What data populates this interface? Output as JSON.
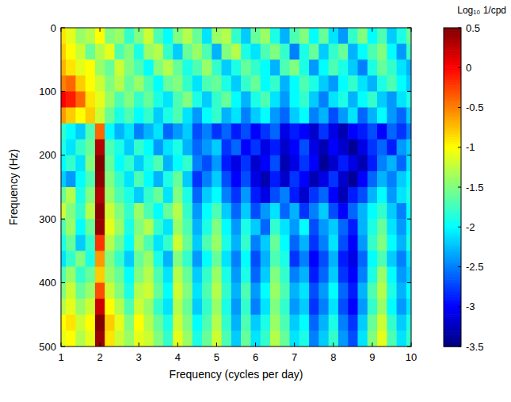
{
  "chart_data": {
    "type": "heatmap",
    "x_label": "Frequency (cycles per day)",
    "y_label": "Frequency (Hz)",
    "xlim": [
      1,
      10
    ],
    "xticks": [
      1,
      2,
      3,
      4,
      5,
      6,
      7,
      8,
      9,
      10
    ],
    "ylim": [
      0,
      500
    ],
    "yticks": [
      0,
      100,
      200,
      300,
      400,
      500
    ],
    "x": [
      1,
      1.25,
      1.5,
      1.75,
      2,
      2.25,
      2.5,
      2.75,
      3,
      3.25,
      3.5,
      3.75,
      4,
      4.25,
      4.5,
      4.75,
      5,
      5.25,
      5.5,
      5.75,
      6,
      6.25,
      6.5,
      6.75,
      7,
      7.25,
      7.5,
      7.75,
      8,
      8.25,
      8.5,
      8.75,
      9,
      9.25,
      9.5,
      9.75,
      10
    ],
    "y": [
      12.5,
      37.5,
      62.5,
      87.5,
      112.5,
      137.5,
      162.5,
      187.5,
      212.5,
      237.5,
      262.5,
      287.5,
      312.5,
      337.5,
      362.5,
      387.5,
      412.5,
      437.5,
      462.5,
      487.5
    ],
    "cells": [
      [
        -0.9,
        -1.1,
        -1.4,
        -1.3,
        -1.0,
        -1.5,
        -1.4,
        -1.8,
        -1.5,
        -1.2,
        -1.7,
        -2.0,
        -1.5,
        -1.3,
        -1.6,
        -2.1,
        -1.4,
        -1.3,
        -1.8,
        -2.2,
        -1.6,
        -1.4,
        -1.9,
        -2.3,
        -1.7,
        -1.5,
        -2.0,
        -1.6,
        -2.1,
        -2.4,
        -1.8,
        -1.5,
        -2.0,
        -1.7,
        -2.2,
        -1.9,
        -1.6
      ],
      [
        -0.8,
        -1.0,
        -1.2,
        -1.6,
        -1.3,
        -1.1,
        -1.7,
        -1.5,
        -1.9,
        -1.4,
        -1.3,
        -1.8,
        -2.2,
        -1.6,
        -1.4,
        -1.7,
        -2.3,
        -1.5,
        -1.3,
        -1.9,
        -2.1,
        -1.7,
        -1.5,
        -1.8,
        -2.5,
        -1.9,
        -1.6,
        -2.2,
        -1.8,
        -1.6,
        -2.3,
        -2.0,
        -1.7,
        -1.5,
        -2.0,
        -2.4,
        -1.8
      ],
      [
        -0.7,
        -0.9,
        -1.1,
        -1.0,
        -1.4,
        -1.6,
        -1.2,
        -1.5,
        -1.7,
        -2.0,
        -1.5,
        -1.3,
        -1.6,
        -1.9,
        -1.7,
        -1.4,
        -1.8,
        -2.2,
        -1.9,
        -1.6,
        -1.8,
        -2.0,
        -2.3,
        -1.7,
        -1.5,
        -1.9,
        -2.4,
        -2.0,
        -1.7,
        -1.9,
        -2.2,
        -2.5,
        -1.9,
        -1.6,
        -1.8,
        -2.1,
        -2.3
      ],
      [
        -0.5,
        -0.4,
        -0.8,
        -1.0,
        -1.2,
        -1.5,
        -1.3,
        -1.6,
        -1.4,
        -1.7,
        -2.0,
        -1.6,
        -1.5,
        -1.8,
        -2.1,
        -1.7,
        -1.6,
        -1.9,
        -2.2,
        -1.8,
        -1.6,
        -2.0,
        -1.8,
        -2.3,
        -2.0,
        -1.7,
        -1.9,
        -2.2,
        -2.4,
        -2.0,
        -1.8,
        -2.1,
        -2.3,
        -1.9,
        -1.7,
        -2.0,
        -2.2
      ],
      [
        0.0,
        -0.1,
        -0.4,
        -0.9,
        -1.1,
        -1.4,
        -1.7,
        -1.5,
        -1.8,
        -1.6,
        -1.9,
        -2.1,
        -1.7,
        -1.5,
        -1.9,
        -2.2,
        -1.8,
        -1.6,
        -2.0,
        -2.3,
        -1.9,
        -1.7,
        -2.1,
        -2.4,
        -2.0,
        -1.8,
        -2.2,
        -2.5,
        -2.1,
        -1.9,
        -2.3,
        -2.0,
        -1.8,
        -2.2,
        -2.4,
        -2.1,
        -1.9
      ],
      [
        -0.6,
        -0.8,
        -1.0,
        -0.8,
        -1.2,
        -1.6,
        -1.9,
        -1.7,
        -2.0,
        -1.8,
        -2.2,
        -1.9,
        -1.7,
        -2.1,
        -2.4,
        -2.0,
        -1.8,
        -2.3,
        -2.1,
        -2.5,
        -2.2,
        -2.0,
        -2.4,
        -2.6,
        -2.2,
        -2.0,
        -2.5,
        -2.3,
        -2.7,
        -2.4,
        -2.1,
        -2.6,
        -2.3,
        -2.0,
        -2.4,
        -2.6,
        -2.2
      ],
      [
        -1.8,
        -2.0,
        -2.2,
        -1.7,
        -0.4,
        -2.0,
        -2.3,
        -2.1,
        -2.5,
        -2.3,
        -2.1,
        -2.6,
        -2.4,
        -2.2,
        -2.7,
        -2.5,
        -2.8,
        -2.6,
        -2.9,
        -2.7,
        -3.0,
        -2.8,
        -2.6,
        -3.1,
        -2.9,
        -3.0,
        -3.2,
        -2.8,
        -3.1,
        -3.3,
        -3.0,
        -2.9,
        -2.7,
        -3.0,
        -2.6,
        -2.8,
        -2.5
      ],
      [
        -1.9,
        -2.1,
        -1.8,
        -1.6,
        0.3,
        -1.7,
        -1.9,
        -2.2,
        -1.8,
        -2.0,
        -2.4,
        -2.1,
        -1.9,
        -2.3,
        -2.6,
        -2.4,
        -2.2,
        -2.8,
        -2.6,
        -3.0,
        -2.8,
        -3.1,
        -2.9,
        -3.2,
        -3.0,
        -2.7,
        -3.1,
        -3.3,
        -3.0,
        -3.2,
        -3.4,
        -3.1,
        -2.8,
        -2.6,
        -2.9,
        -2.4,
        -2.2
      ],
      [
        -2.0,
        -1.8,
        -2.1,
        -1.5,
        0.5,
        -1.6,
        -2.0,
        -1.8,
        -2.2,
        -1.9,
        -1.7,
        -2.3,
        -2.0,
        -1.8,
        -2.5,
        -2.7,
        -2.4,
        -2.9,
        -3.1,
        -2.8,
        -3.2,
        -3.0,
        -2.7,
        -3.3,
        -3.1,
        -2.8,
        -3.0,
        -3.4,
        -3.2,
        -2.9,
        -3.1,
        -3.3,
        -2.9,
        -2.5,
        -2.3,
        -2.6,
        -2.1
      ],
      [
        -2.2,
        -2.4,
        -2.0,
        -1.7,
        0.45,
        -1.5,
        -1.8,
        -2.1,
        -1.7,
        -2.0,
        -2.3,
        -1.9,
        -1.6,
        -2.2,
        -2.8,
        -2.5,
        -2.2,
        -2.7,
        -3.0,
        -2.7,
        -3.1,
        -3.3,
        -2.9,
        -3.2,
        -2.8,
        -3.0,
        -3.3,
        -3.1,
        -2.8,
        -3.2,
        -3.4,
        -3.0,
        -2.6,
        -2.3,
        -2.5,
        -2.2,
        -2.0
      ],
      [
        -1.6,
        -1.3,
        -1.9,
        -1.5,
        0.3,
        -1.4,
        -1.7,
        -1.9,
        -2.2,
        -1.8,
        -1.6,
        -2.1,
        -1.5,
        -1.9,
        -2.6,
        -2.2,
        -2.0,
        -2.5,
        -2.8,
        -2.4,
        -2.9,
        -3.1,
        -2.7,
        -2.5,
        -2.9,
        -3.2,
        -2.8,
        -2.6,
        -3.0,
        -3.3,
        -2.9,
        -2.7,
        -2.3,
        -2.0,
        -2.4,
        -2.1,
        -1.9
      ],
      [
        -1.2,
        -1.5,
        -1.8,
        -1.3,
        0.45,
        -1.2,
        -1.5,
        -1.8,
        -1.4,
        -1.7,
        -2.0,
        -1.6,
        -1.3,
        -1.8,
        -2.4,
        -2.0,
        -1.7,
        -2.2,
        -2.6,
        -2.2,
        -2.7,
        -2.4,
        -2.1,
        -2.6,
        -2.3,
        -2.8,
        -2.5,
        -2.2,
        -2.7,
        -3.0,
        -2.6,
        -2.3,
        -2.0,
        -1.8,
        -2.2,
        -2.5,
        -2.0
      ],
      [
        -1.7,
        -1.4,
        -2.0,
        -1.6,
        0.4,
        -1.1,
        -1.4,
        -1.9,
        -1.5,
        -1.3,
        -1.8,
        -2.1,
        -1.4,
        -1.7,
        -2.3,
        -1.9,
        -1.5,
        -2.0,
        -2.4,
        -1.9,
        -2.2,
        -2.6,
        -1.8,
        -2.1,
        -2.4,
        -2.0,
        -2.7,
        -2.4,
        -2.2,
        -2.6,
        -2.9,
        -2.3,
        -1.9,
        -1.6,
        -2.1,
        -2.4,
        -2.0
      ],
      [
        -1.9,
        -1.6,
        -2.2,
        -1.8,
        -0.2,
        -1.3,
        -1.6,
        -2.0,
        -1.4,
        -1.7,
        -2.1,
        -1.8,
        -1.2,
        -1.6,
        -2.2,
        -1.7,
        -1.4,
        -1.9,
        -2.3,
        -1.8,
        -2.5,
        -2.2,
        -1.6,
        -2.0,
        -2.6,
        -2.3,
        -2.8,
        -2.5,
        -2.1,
        -2.7,
        -3.0,
        -2.4,
        -1.8,
        -1.5,
        -2.0,
        -2.3,
        -1.9
      ],
      [
        -2.1,
        -1.8,
        -1.5,
        -1.9,
        -0.6,
        -1.5,
        -1.8,
        -2.2,
        -1.6,
        -1.4,
        -1.9,
        -2.3,
        -1.5,
        -1.8,
        -2.4,
        -2.0,
        -1.6,
        -2.1,
        -2.5,
        -2.0,
        -2.7,
        -2.3,
        -1.7,
        -1.9,
        -2.8,
        -2.5,
        -3.0,
        -2.7,
        -2.3,
        -2.9,
        -3.1,
        -2.6,
        -2.0,
        -1.7,
        -2.2,
        -2.5,
        -2.1
      ],
      [
        -1.7,
        -1.4,
        -1.8,
        -1.6,
        -0.8,
        -1.4,
        -1.6,
        -2.0,
        -1.5,
        -1.3,
        -1.7,
        -2.1,
        -1.3,
        -1.6,
        -2.2,
        -1.8,
        -1.4,
        -1.9,
        -2.4,
        -1.9,
        -2.6,
        -2.2,
        -1.5,
        -1.8,
        -2.5,
        -2.3,
        -2.9,
        -2.6,
        -2.2,
        -2.8,
        -3.0,
        -2.5,
        -1.9,
        -1.4,
        -2.0,
        -2.4,
        -2.2
      ],
      [
        -1.5,
        -1.2,
        -1.6,
        -1.4,
        -0.3,
        -1.2,
        -1.5,
        -1.9,
        -1.3,
        -1.2,
        -1.6,
        -2.0,
        -1.2,
        -1.5,
        -2.1,
        -1.7,
        -1.3,
        -1.8,
        -2.3,
        -1.7,
        -2.4,
        -2.0,
        -1.4,
        -1.7,
        -2.3,
        -2.1,
        -2.7,
        -2.4,
        -2.0,
        -2.6,
        -2.9,
        -2.3,
        -1.7,
        -1.3,
        -1.9,
        -2.3,
        -2.0
      ],
      [
        -1.3,
        -1.1,
        -1.4,
        -1.2,
        0.2,
        -1.0,
        -1.3,
        -1.7,
        -1.2,
        -1.4,
        -1.8,
        -2.1,
        -1.3,
        -1.6,
        -2.2,
        -1.8,
        -1.4,
        -1.9,
        -2.4,
        -1.8,
        -2.5,
        -2.1,
        -1.5,
        -1.8,
        -2.4,
        -2.2,
        -2.8,
        -2.5,
        -2.1,
        -2.7,
        -3.0,
        -2.4,
        -1.8,
        -1.4,
        -2.0,
        -2.4,
        -2.1
      ],
      [
        -1.0,
        -0.9,
        -1.2,
        -1.0,
        0.5,
        -0.8,
        -1.1,
        -1.5,
        -1.0,
        -1.3,
        -1.6,
        -1.9,
        -1.2,
        -1.5,
        -2.0,
        -1.7,
        -1.3,
        -1.8,
        -2.3,
        -1.7,
        -2.2,
        -1.9,
        -1.4,
        -1.7,
        -2.2,
        -2.0,
        -2.6,
        -2.3,
        -1.9,
        -2.5,
        -2.8,
        -2.2,
        -1.6,
        -1.2,
        -1.8,
        -2.2,
        -1.9
      ],
      [
        -1.1,
        -1.0,
        -1.3,
        -1.1,
        0.4,
        -0.9,
        -1.2,
        -1.4,
        -1.1,
        -1.2,
        -1.5,
        -1.8,
        -1.1,
        -1.4,
        -1.9,
        -1.6,
        -1.2,
        -1.7,
        -2.2,
        -1.6,
        -2.1,
        -1.8,
        -1.3,
        -1.6,
        -2.1,
        -1.9,
        -2.5,
        -2.2,
        -1.8,
        -2.4,
        -2.7,
        -2.1,
        -1.5,
        -1.1,
        -1.7,
        -2.1,
        -1.8
      ]
    ],
    "colorbar": {
      "label": "Log₁₀ 1/cpd",
      "range": [
        -3.5,
        0.5
      ],
      "ticks": [
        0.5,
        0,
        -0.5,
        -1,
        -1.5,
        -2,
        -2.5,
        -3,
        -3.5
      ]
    }
  }
}
